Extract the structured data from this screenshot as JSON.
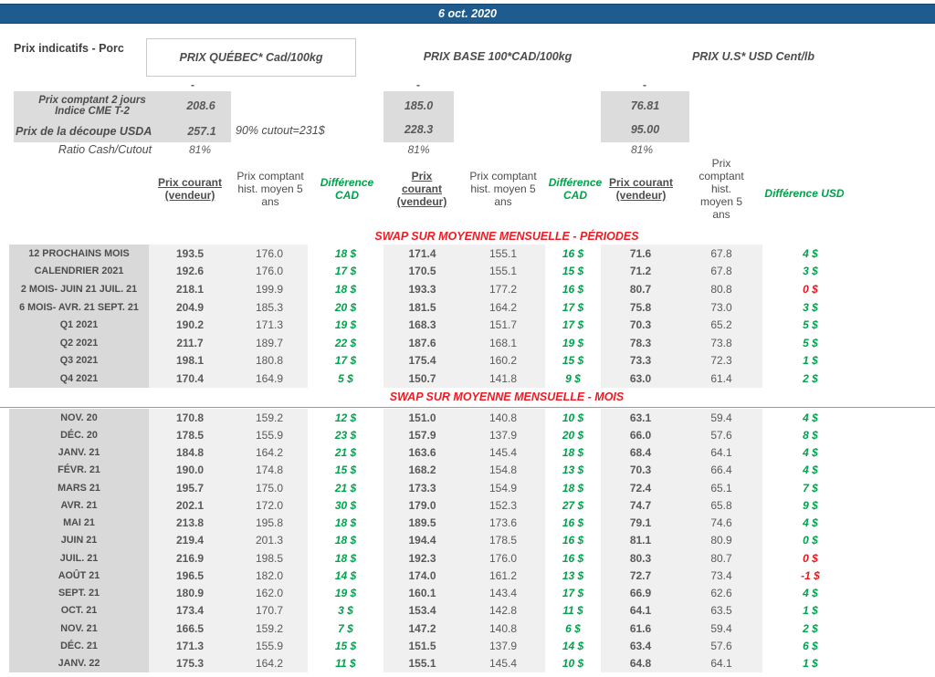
{
  "banner": {
    "date": "6 oct. 2020",
    "bg_color": "#1e5b8e"
  },
  "header": {
    "page_label": "Prix indicatifs - Porc",
    "groups": [
      {
        "title": "PRIX QUÉBEC* Cad/100kg"
      },
      {
        "title": "PRIX BASE 100*CAD/100kg"
      },
      {
        "title": "PRIX U.S* USD Cent/lb"
      }
    ]
  },
  "spot": {
    "empty_dash": "-",
    "row1": {
      "label": "Prix comptant 2 jours\nIndice CME T-2",
      "qc": "208.6",
      "base": "185.0",
      "us": "76.81"
    },
    "row2": {
      "label": "Prix de la découpe USDA",
      "qc": "257.1",
      "note": "90% cutout=231$",
      "base": "228.3",
      "us": "95.00"
    },
    "row3": {
      "label": "Ratio Cash/Cutout",
      "qc": "81%",
      "base": "81%",
      "us": "81%"
    }
  },
  "table": {
    "column_headers": {
      "qc_current": "Prix courant\n(vendeur)",
      "qc_hist": "Prix comptant\nhist. moyen 5\nans",
      "diff_cad_1": "Différence\nCAD",
      "base_current": "Prix\ncourant\n(vendeur)",
      "base_hist": "Prix comptant\nhist. moyen 5\nans",
      "diff_cad_2": "Différence\nCAD",
      "us_current": "Prix courant\n(vendeur)",
      "us_hist": "Prix\ncomptant\nhist.\nmoyen 5\nans",
      "diff_usd": "Différence USD"
    },
    "colors": {
      "positive_diff": "#00a24c",
      "negative_diff": "#e0191f",
      "section_title": "#ed1c24",
      "label_band": "#d9d9d9",
      "value_band": "#f0f0f0"
    },
    "sections": [
      {
        "title": "SWAP SUR MOYENNE MENSUELLE - PÉRIODES",
        "rows": [
          {
            "label": "12 PROCHAINS MOIS",
            "cells": [
              "193.5",
              "176.0",
              "18 $",
              "171.4",
              "155.1",
              "16 $",
              "71.6",
              "67.8",
              "4 $"
            ],
            "red": []
          },
          {
            "label": "CALENDRIER 2021",
            "cells": [
              "192.6",
              "176.0",
              "17 $",
              "170.5",
              "155.1",
              "15 $",
              "71.2",
              "67.8",
              "3 $"
            ],
            "red": []
          },
          {
            "label": "2 MOIS- JUIN 21 JUIL. 21",
            "cells": [
              "218.1",
              "199.9",
              "18 $",
              "193.3",
              "177.2",
              "16 $",
              "80.7",
              "80.8",
              "0 $"
            ],
            "red": [
              8
            ]
          },
          {
            "label": "6 MOIS- AVR. 21 SEPT. 21",
            "cells": [
              "204.9",
              "185.3",
              "20 $",
              "181.5",
              "164.2",
              "17 $",
              "75.8",
              "73.0",
              "3 $"
            ],
            "red": []
          },
          {
            "label": "Q1 2021",
            "cells": [
              "190.2",
              "171.3",
              "19 $",
              "168.3",
              "151.7",
              "17 $",
              "70.3",
              "65.2",
              "5 $"
            ],
            "red": []
          },
          {
            "label": "Q2 2021",
            "cells": [
              "211.7",
              "189.7",
              "22 $",
              "187.6",
              "168.1",
              "19 $",
              "78.3",
              "73.8",
              "5 $"
            ],
            "red": []
          },
          {
            "label": "Q3 2021",
            "cells": [
              "198.1",
              "180.8",
              "17 $",
              "175.4",
              "160.2",
              "15 $",
              "73.3",
              "72.3",
              "1 $"
            ],
            "red": []
          },
          {
            "label": "Q4 2021",
            "cells": [
              "170.4",
              "164.9",
              "5 $",
              "150.7",
              "141.8",
              "9 $",
              "63.0",
              "61.4",
              "2 $"
            ],
            "red": []
          }
        ]
      },
      {
        "title": "SWAP SUR MOYENNE MENSUELLE - MOIS",
        "rows": [
          {
            "label": "NOV. 20",
            "cells": [
              "170.8",
              "159.2",
              "12 $",
              "151.0",
              "140.8",
              "10 $",
              "63.1",
              "59.4",
              "4 $"
            ],
            "red": []
          },
          {
            "label": "DÉC. 20",
            "cells": [
              "178.5",
              "155.9",
              "23 $",
              "157.9",
              "137.9",
              "20 $",
              "66.0",
              "57.6",
              "8 $"
            ],
            "red": []
          },
          {
            "label": "JANV. 21",
            "cells": [
              "184.8",
              "164.2",
              "21 $",
              "163.6",
              "145.4",
              "18 $",
              "68.4",
              "64.1",
              "4 $"
            ],
            "red": []
          },
          {
            "label": "FÉVR. 21",
            "cells": [
              "190.0",
              "174.8",
              "15 $",
              "168.2",
              "154.8",
              "13 $",
              "70.3",
              "66.4",
              "4 $"
            ],
            "red": []
          },
          {
            "label": "MARS 21",
            "cells": [
              "195.7",
              "175.0",
              "21 $",
              "173.3",
              "154.9",
              "18 $",
              "72.4",
              "65.1",
              "7 $"
            ],
            "red": []
          },
          {
            "label": "AVR. 21",
            "cells": [
              "202.1",
              "172.0",
              "30 $",
              "179.0",
              "152.3",
              "27 $",
              "74.7",
              "65.8",
              "9 $"
            ],
            "red": []
          },
          {
            "label": "MAI 21",
            "cells": [
              "213.8",
              "195.8",
              "18 $",
              "189.5",
              "173.6",
              "16 $",
              "79.1",
              "74.6",
              "4 $"
            ],
            "red": []
          },
          {
            "label": "JUIN 21",
            "cells": [
              "219.4",
              "201.3",
              "18 $",
              "194.4",
              "178.5",
              "16 $",
              "81.1",
              "80.9",
              "0 $"
            ],
            "red": []
          },
          {
            "label": "JUIL. 21",
            "cells": [
              "216.9",
              "198.5",
              "18 $",
              "192.3",
              "176.0",
              "16 $",
              "80.3",
              "80.7",
              "0 $"
            ],
            "red": [
              8
            ]
          },
          {
            "label": "AOÛT 21",
            "cells": [
              "196.5",
              "182.0",
              "14 $",
              "174.0",
              "161.2",
              "13 $",
              "72.7",
              "73.4",
              "-1 $"
            ],
            "red": [
              8
            ]
          },
          {
            "label": "SEPT. 21",
            "cells": [
              "180.9",
              "162.0",
              "19 $",
              "160.1",
              "143.4",
              "17 $",
              "66.9",
              "62.6",
              "4 $"
            ],
            "red": []
          },
          {
            "label": "OCT. 21",
            "cells": [
              "173.4",
              "170.7",
              "3 $",
              "153.4",
              "142.8",
              "11 $",
              "64.1",
              "63.5",
              "1 $"
            ],
            "red": []
          },
          {
            "label": "NOV. 21",
            "cells": [
              "166.5",
              "159.2",
              "7 $",
              "147.2",
              "140.8",
              "6 $",
              "61.6",
              "59.4",
              "2 $"
            ],
            "red": []
          },
          {
            "label": "DÉC. 21",
            "cells": [
              "171.3",
              "155.9",
              "15 $",
              "151.5",
              "137.9",
              "14 $",
              "63.4",
              "57.6",
              "6 $"
            ],
            "red": []
          },
          {
            "label": "JANV. 22",
            "cells": [
              "175.3",
              "164.2",
              "11 $",
              "155.1",
              "145.4",
              "10 $",
              "64.8",
              "64.1",
              "1 $"
            ],
            "red": []
          }
        ]
      }
    ]
  }
}
